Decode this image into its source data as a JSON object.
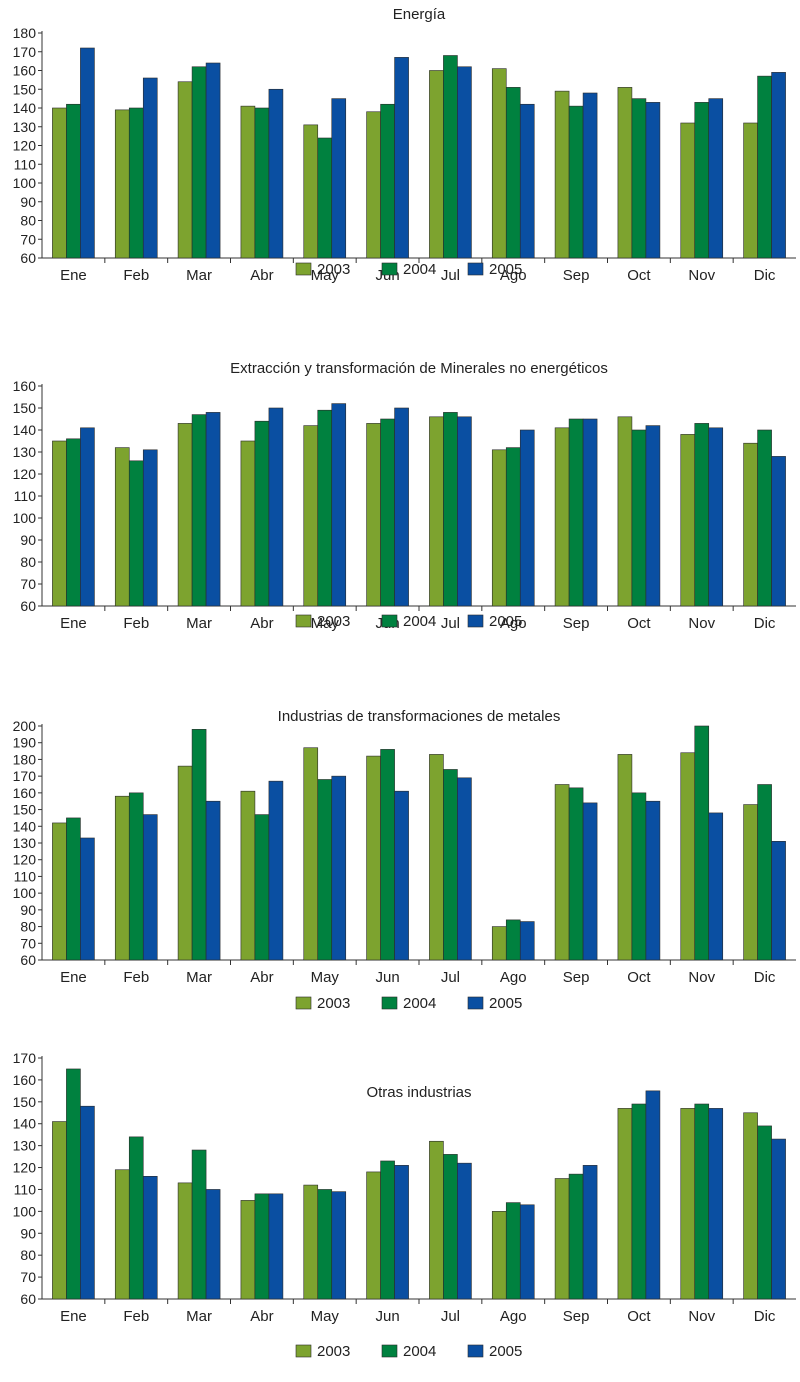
{
  "colors": {
    "2003": "#7da32f",
    "2004": "#00813f",
    "2005": "#0a4fa2"
  },
  "chart_data": [
    {
      "type": "bar",
      "title": "Energía",
      "categories": [
        "Ene",
        "Feb",
        "Mar",
        "Abr",
        "May",
        "Jun",
        "Jul",
        "Ago",
        "Sep",
        "Oct",
        "Nov",
        "Dic"
      ],
      "ylim": [
        60,
        180
      ],
      "yticks": [
        60,
        70,
        80,
        90,
        100,
        110,
        120,
        130,
        140,
        150,
        160,
        170,
        180
      ],
      "legend": "bottom",
      "series": [
        {
          "name": "2003",
          "values": [
            140,
            139,
            154,
            141,
            131,
            138,
            160,
            161,
            149,
            151,
            132,
            132
          ]
        },
        {
          "name": "2004",
          "values": [
            142,
            140,
            162,
            140,
            124,
            142,
            168,
            151,
            141,
            145,
            143,
            157
          ]
        },
        {
          "name": "2005",
          "values": [
            172,
            156,
            164,
            150,
            145,
            167,
            162,
            142,
            148,
            143,
            145,
            159
          ]
        }
      ]
    },
    {
      "type": "bar",
      "title": "Extracción y transformación de Minerales no energéticos",
      "categories": [
        "Ene",
        "Feb",
        "Mar",
        "Abr",
        "May",
        "Jun",
        "Jul",
        "Ago",
        "Sep",
        "Oct",
        "Nov",
        "Dic"
      ],
      "ylim": [
        60,
        160
      ],
      "yticks": [
        60,
        70,
        80,
        90,
        100,
        110,
        120,
        130,
        140,
        150,
        160
      ],
      "legend": "bottom",
      "series": [
        {
          "name": "2003",
          "values": [
            135,
            132,
            143,
            135,
            142,
            143,
            146,
            131,
            141,
            146,
            138,
            134
          ]
        },
        {
          "name": "2004",
          "values": [
            136,
            126,
            147,
            144,
            149,
            145,
            148,
            132,
            145,
            140,
            143,
            140
          ]
        },
        {
          "name": "2005",
          "values": [
            141,
            131,
            148,
            150,
            152,
            150,
            146,
            140,
            145,
            142,
            141,
            128
          ]
        }
      ]
    },
    {
      "type": "bar",
      "title": "Industrias de transformaciones de metales",
      "categories": [
        "Ene",
        "Feb",
        "Mar",
        "Abr",
        "May",
        "Jun",
        "Jul",
        "Ago",
        "Sep",
        "Oct",
        "Nov",
        "Dic"
      ],
      "ylim": [
        60,
        200
      ],
      "yticks": [
        60,
        70,
        80,
        90,
        100,
        110,
        120,
        130,
        140,
        150,
        160,
        170,
        180,
        190,
        200
      ],
      "legend": "bottom",
      "series": [
        {
          "name": "2003",
          "values": [
            142,
            158,
            176,
            161,
            187,
            182,
            183,
            80,
            165,
            183,
            184,
            153
          ]
        },
        {
          "name": "2004",
          "values": [
            145,
            160,
            198,
            147,
            168,
            186,
            174,
            84,
            163,
            160,
            200,
            165
          ]
        },
        {
          "name": "2005",
          "values": [
            133,
            147,
            155,
            167,
            170,
            161,
            169,
            83,
            154,
            155,
            148,
            131
          ]
        }
      ]
    },
    {
      "type": "bar",
      "title": "Otras industrias",
      "categories": [
        "Ene",
        "Feb",
        "Mar",
        "Abr",
        "May",
        "Jun",
        "Jul",
        "Ago",
        "Sep",
        "Oct",
        "Nov",
        "Dic"
      ],
      "ylim": [
        60,
        170
      ],
      "yticks": [
        60,
        70,
        80,
        90,
        100,
        110,
        120,
        130,
        140,
        150,
        160,
        170
      ],
      "legend": "bottom",
      "series": [
        {
          "name": "2003",
          "values": [
            141,
            119,
            113,
            105,
            112,
            118,
            132,
            100,
            115,
            147,
            147,
            145
          ]
        },
        {
          "name": "2004",
          "values": [
            165,
            134,
            128,
            108,
            110,
            123,
            126,
            104,
            117,
            149,
            149,
            139
          ]
        },
        {
          "name": "2005",
          "values": [
            148,
            116,
            110,
            108,
            109,
            121,
            122,
            103,
            121,
            155,
            147,
            133
          ]
        }
      ]
    }
  ]
}
